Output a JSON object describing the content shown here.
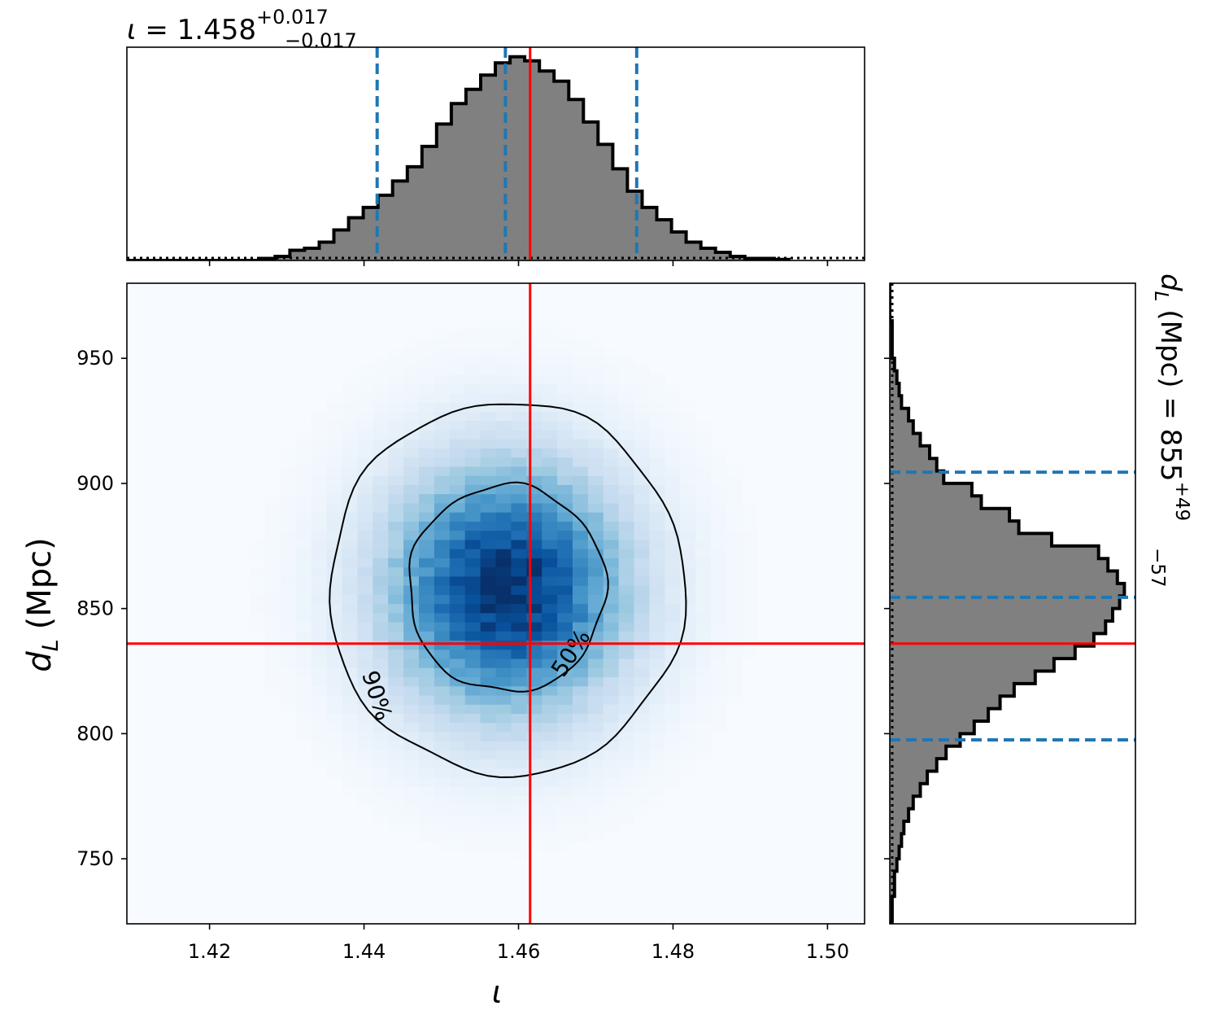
{
  "chart_data": {
    "type": "corner",
    "parameters": [
      {
        "symbol": "ι",
        "xlabel": "ι",
        "median": 1.458,
        "err_plus": "+0.017",
        "err_minus": "−0.017",
        "true_value": 1.4615,
        "quantile_lines": [
          1.4417,
          1.4583,
          1.4753
        ],
        "axis_range": [
          1.4093,
          1.5048
        ],
        "ticks": [
          "1.42",
          "1.44",
          "1.46",
          "1.48",
          "1.50"
        ],
        "tick_values": [
          1.42,
          1.44,
          1.46,
          1.48,
          1.5
        ],
        "histogram": {
          "bin_width": 0.0019,
          "bins_left": [
            1.4266,
            1.4285,
            1.4304,
            1.4323,
            1.4342,
            1.4361,
            1.438,
            1.4399,
            1.4418,
            1.4437,
            1.4456,
            1.4475,
            1.4494,
            1.4513,
            1.4532,
            1.4551,
            1.457,
            1.4589,
            1.4608,
            1.4627,
            1.4646,
            1.4665,
            1.4684,
            1.4703,
            1.4722,
            1.4741,
            1.476,
            1.4779,
            1.4798,
            1.4817,
            1.4836,
            1.4855,
            1.4874,
            1.4893,
            1.4912,
            1.4931
          ],
          "density": [
            0.01,
            0.02,
            0.05,
            0.06,
            0.09,
            0.15,
            0.21,
            0.26,
            0.32,
            0.39,
            0.46,
            0.56,
            0.67,
            0.77,
            0.84,
            0.91,
            0.97,
            1.0,
            0.98,
            0.93,
            0.88,
            0.79,
            0.68,
            0.57,
            0.45,
            0.34,
            0.26,
            0.2,
            0.14,
            0.09,
            0.06,
            0.04,
            0.02,
            0.01,
            0.01,
            0.005
          ]
        }
      },
      {
        "symbol": "d_L",
        "ylabel": "(Mpc)",
        "unit": "(Mpc)",
        "median": 855,
        "err_plus": "+49",
        "err_minus": "−57",
        "true_value": 836,
        "quantile_lines": [
          797.5,
          854.5,
          904.5
        ],
        "axis_range": [
          724,
          980
        ],
        "ticks": [
          "750",
          "800",
          "850",
          "900",
          "950"
        ],
        "tick_values": [
          750,
          800,
          850,
          900,
          950
        ],
        "histogram": {
          "bin_width": 5.0,
          "bins_bottom": [
            720,
            725,
            730,
            735,
            740,
            745,
            750,
            755,
            760,
            765,
            770,
            775,
            780,
            785,
            790,
            795,
            800,
            805,
            810,
            815,
            820,
            825,
            830,
            835,
            840,
            845,
            850,
            855,
            860,
            865,
            870,
            875,
            880,
            885,
            890,
            895,
            900,
            905,
            910,
            915,
            920,
            925,
            930,
            935,
            940,
            945,
            950,
            955,
            960,
            965,
            970,
            975
          ],
          "density": [
            0.0,
            0.01,
            0.01,
            0.02,
            0.02,
            0.03,
            0.04,
            0.05,
            0.06,
            0.08,
            0.1,
            0.13,
            0.16,
            0.2,
            0.24,
            0.3,
            0.36,
            0.42,
            0.47,
            0.53,
            0.62,
            0.7,
            0.79,
            0.87,
            0.92,
            0.95,
            0.98,
            1.0,
            0.97,
            0.93,
            0.89,
            0.69,
            0.55,
            0.51,
            0.39,
            0.35,
            0.23,
            0.2,
            0.17,
            0.13,
            0.1,
            0.08,
            0.05,
            0.04,
            0.03,
            0.02,
            0.01,
            0.01,
            0.01,
            0.0,
            0.0,
            0.0
          ]
        }
      }
    ],
    "joint": {
      "colormap": "Blues",
      "peak": [
        1.4585,
        858
      ],
      "sigma": [
        0.0108,
        35
      ],
      "contour_levels": [
        "50%",
        "90%"
      ]
    },
    "colors": {
      "truth": "#ff0000",
      "quantile": "#1f77b4",
      "hist_fill": "#808080",
      "hist_edge": "#000000",
      "contour": "#000000"
    },
    "grid": false
  }
}
